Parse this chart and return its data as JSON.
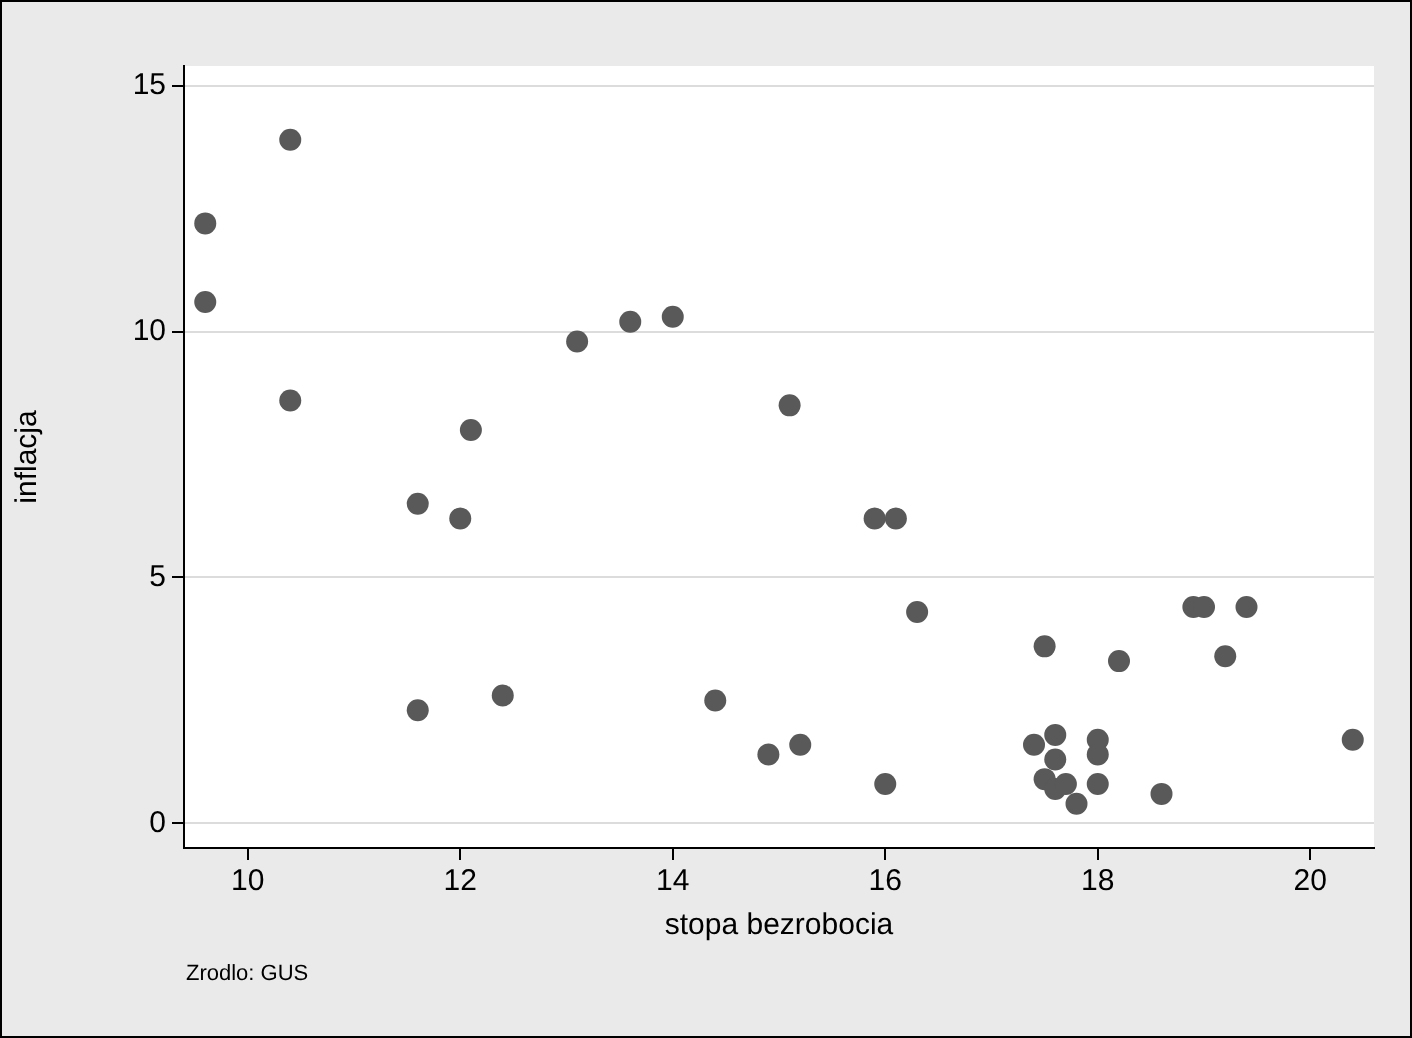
{
  "chart_data": {
    "type": "scatter",
    "xlabel": "stopa bezrobocia",
    "ylabel": "inflacja",
    "annotations": [
      "Zrodlo: GUS"
    ],
    "xlim": [
      9.4,
      20.6
    ],
    "xticks": [
      10,
      12,
      14,
      16,
      18,
      20
    ],
    "ylim": [
      -0.5,
      15.4
    ],
    "yticks": [
      0,
      5,
      10,
      15
    ],
    "grid": "y",
    "legend": false,
    "marker": "circle",
    "series": [
      {
        "color": "#595959",
        "x": [
          9.6,
          9.6,
          10.4,
          10.4,
          11.6,
          12.0,
          12.1,
          11.6,
          12.4,
          13.1,
          13.6,
          14.0,
          14.4,
          15.1,
          15.9,
          16.1,
          16.3,
          17.5,
          18.2,
          18.9,
          19.0,
          19.4,
          19.2,
          14.9,
          15.2,
          16.0,
          17.4,
          17.6,
          17.6,
          17.5,
          17.6,
          17.7,
          17.8,
          18.0,
          18.0,
          18.0,
          18.6,
          20.4
        ],
        "values": [
          12.2,
          10.6,
          13.9,
          8.6,
          6.5,
          6.2,
          8.0,
          2.3,
          2.6,
          9.8,
          10.2,
          10.3,
          2.5,
          8.5,
          6.2,
          6.2,
          4.3,
          3.6,
          3.3,
          4.4,
          4.4,
          4.4,
          3.4,
          1.4,
          1.6,
          0.8,
          1.6,
          1.8,
          1.3,
          0.9,
          0.7,
          0.8,
          0.4,
          1.7,
          1.4,
          0.8,
          0.6,
          1.7
        ]
      }
    ]
  }
}
